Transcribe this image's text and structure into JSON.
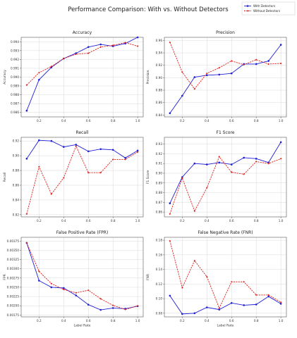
{
  "figure": {
    "title": "Performance Comparison: With vs. Without Detectors",
    "legend": {
      "placement": "top-right",
      "entries": [
        "With Detectors",
        "Without Detectors"
      ]
    },
    "colors": {
      "with": "#1f1fd8",
      "without": "#e0201c"
    }
  },
  "chart_data": [
    {
      "type": "line",
      "title": "Accuracy",
      "xlabel": "",
      "ylabel": "Accuracy",
      "x": [
        0.1,
        0.2,
        0.3,
        0.4,
        0.5,
        0.6,
        0.7,
        0.8,
        0.9,
        1.0
      ],
      "xticks": [
        "0.2",
        "0.4",
        "0.6",
        "0.8",
        "1.0"
      ],
      "xticks_values": [
        0.2,
        0.4,
        0.6,
        0.8,
        1.0
      ],
      "ylim": [
        0.9855,
        0.9945
      ],
      "yticks": [
        0.986,
        0.987,
        0.988,
        0.989,
        0.99,
        0.991,
        0.992,
        0.993,
        0.994
      ],
      "yticks_labels": [
        "0.986",
        "0.987",
        "0.988",
        "0.989",
        "0.990",
        "0.991",
        "0.992",
        "0.993",
        "0.994"
      ],
      "grid": true,
      "series": [
        {
          "name": "With Detectors",
          "values": [
            0.9862,
            0.9897,
            0.9911,
            0.9921,
            0.9927,
            0.9934,
            0.9937,
            0.9935,
            0.9938,
            0.9945
          ]
        },
        {
          "name": "Without Detectors",
          "values": [
            0.9891,
            0.9905,
            0.9912,
            0.9921,
            0.9926,
            0.9927,
            0.9934,
            0.9936,
            0.9939,
            0.9935
          ]
        }
      ]
    },
    {
      "type": "line",
      "title": "Precision",
      "xlabel": "",
      "ylabel": "Precision",
      "x": [
        0.1,
        0.2,
        0.3,
        0.4,
        0.5,
        0.6,
        0.7,
        0.8,
        0.9,
        1.0
      ],
      "xticks": [
        "0.2",
        "0.4",
        "0.6",
        "0.8",
        "1.0"
      ],
      "xticks_values": [
        0.2,
        0.4,
        0.6,
        0.8,
        1.0
      ],
      "ylim": [
        0.837,
        0.965
      ],
      "yticks": [
        0.84,
        0.86,
        0.88,
        0.9,
        0.92,
        0.94,
        0.96
      ],
      "yticks_labels": [
        "0.84",
        "0.86",
        "0.88",
        "0.90",
        "0.92",
        "0.94",
        "0.96"
      ],
      "grid": true,
      "series": [
        {
          "name": "With Detectors",
          "values": [
            0.843,
            0.871,
            0.901,
            0.904,
            0.905,
            0.907,
            0.922,
            0.922,
            0.927,
            0.953
          ]
        },
        {
          "name": "Without Detectors",
          "values": [
            0.957,
            0.909,
            0.882,
            0.907,
            0.916,
            0.927,
            0.921,
            0.929,
            0.922,
            0.923
          ]
        }
      ]
    },
    {
      "type": "line",
      "title": "Recall",
      "xlabel": "",
      "ylabel": "Recall",
      "x": [
        0.1,
        0.2,
        0.3,
        0.4,
        0.5,
        0.6,
        0.7,
        0.8,
        0.9,
        1.0
      ],
      "xticks": [
        "0.2",
        "0.4",
        "0.6",
        "0.8",
        "1.0"
      ],
      "xticks_values": [
        0.2,
        0.4,
        0.6,
        0.8,
        1.0
      ],
      "ylim": [
        0.817,
        0.925
      ],
      "yticks": [
        0.82,
        0.84,
        0.86,
        0.88,
        0.9,
        0.92
      ],
      "yticks_labels": [
        "0.82",
        "0.84",
        "0.86",
        "0.88",
        "0.90",
        "0.92"
      ],
      "grid": true,
      "series": [
        {
          "name": "With Detectors",
          "values": [
            0.896,
            0.921,
            0.92,
            0.912,
            0.915,
            0.906,
            0.909,
            0.908,
            0.897,
            0.907
          ]
        },
        {
          "name": "Without Detectors",
          "values": [
            0.821,
            0.885,
            0.848,
            0.87,
            0.913,
            0.877,
            0.877,
            0.895,
            0.895,
            0.905
          ]
        }
      ]
    },
    {
      "type": "line",
      "title": "F1 Score",
      "xlabel": "",
      "ylabel": "F1 Score",
      "x": [
        0.1,
        0.2,
        0.3,
        0.4,
        0.5,
        0.6,
        0.7,
        0.8,
        0.9,
        1.0
      ],
      "xticks": [
        "0.2",
        "0.4",
        "0.6",
        "0.8",
        "1.0"
      ],
      "xticks_values": [
        0.2,
        0.4,
        0.6,
        0.8,
        1.0
      ],
      "ylim": [
        0.855,
        0.937
      ],
      "yticks": [
        0.86,
        0.87,
        0.88,
        0.89,
        0.9,
        0.91,
        0.92,
        0.93
      ],
      "yticks_labels": [
        "0.86",
        "0.87",
        "0.88",
        "0.89",
        "0.90",
        "0.91",
        "0.92",
        "0.93"
      ],
      "grid": true,
      "series": [
        {
          "name": "With Detectors",
          "values": [
            0.869,
            0.896,
            0.91,
            0.909,
            0.911,
            0.909,
            0.916,
            0.915,
            0.911,
            0.932
          ]
        },
        {
          "name": "Without Detectors",
          "values": [
            0.858,
            0.895,
            0.861,
            0.885,
            0.917,
            0.901,
            0.899,
            0.912,
            0.91,
            0.915
          ]
        }
      ]
    },
    {
      "type": "line",
      "title": "False Positive Rate (FPR)",
      "xlabel": "Label Rate",
      "ylabel": "FPR",
      "x": [
        0.1,
        0.2,
        0.3,
        0.4,
        0.5,
        0.6,
        0.7,
        0.8,
        0.9,
        1.0
      ],
      "xticks": [
        "0.2",
        "0.4",
        "0.6",
        "0.8",
        "1.0"
      ],
      "xticks_values": [
        0.2,
        0.4,
        0.6,
        0.8,
        1.0
      ],
      "ylim": [
        0.0017,
        0.00385
      ],
      "yticks": [
        0.00175,
        0.002,
        0.00225,
        0.0025,
        0.00275,
        0.003,
        0.00325,
        0.0035,
        0.00375
      ],
      "yticks_labels": [
        "0.00175",
        "0.00200",
        "0.00225",
        "0.00250",
        "0.00275",
        "0.00300",
        "0.00325",
        "0.00350",
        "0.00375"
      ],
      "grid": true,
      "series": [
        {
          "name": "With Detectors",
          "values": [
            0.0037,
            0.00268,
            0.0025,
            0.00248,
            0.00228,
            0.00203,
            0.00189,
            0.00194,
            0.00192,
            0.00199
          ]
        },
        {
          "name": "Without Detectors",
          "values": [
            0.0037,
            0.00293,
            0.0026,
            0.00244,
            0.00235,
            0.00242,
            0.00219,
            0.00201,
            0.0019,
            0.002
          ]
        }
      ]
    },
    {
      "type": "line",
      "title": "False Negative Rate (FNR)",
      "xlabel": "Label Rate",
      "ylabel": "FNR",
      "x": [
        0.1,
        0.2,
        0.3,
        0.4,
        0.5,
        0.6,
        0.7,
        0.8,
        0.9,
        1.0
      ],
      "xticks": [
        "0.2",
        "0.4",
        "0.6",
        "0.8",
        "1.0"
      ],
      "xticks_values": [
        0.2,
        0.4,
        0.6,
        0.8,
        1.0
      ],
      "ylim": [
        0.075,
        0.184
      ],
      "yticks": [
        0.08,
        0.1,
        0.12,
        0.14,
        0.16,
        0.18
      ],
      "yticks_labels": [
        "0.08",
        "0.10",
        "0.12",
        "0.14",
        "0.16",
        "0.18"
      ],
      "grid": true,
      "series": [
        {
          "name": "With Detectors",
          "values": [
            0.104,
            0.079,
            0.08,
            0.088,
            0.085,
            0.094,
            0.091,
            0.092,
            0.103,
            0.093
          ]
        },
        {
          "name": "Without Detectors",
          "values": [
            0.179,
            0.115,
            0.152,
            0.13,
            0.087,
            0.123,
            0.123,
            0.105,
            0.105,
            0.095
          ]
        }
      ]
    }
  ]
}
